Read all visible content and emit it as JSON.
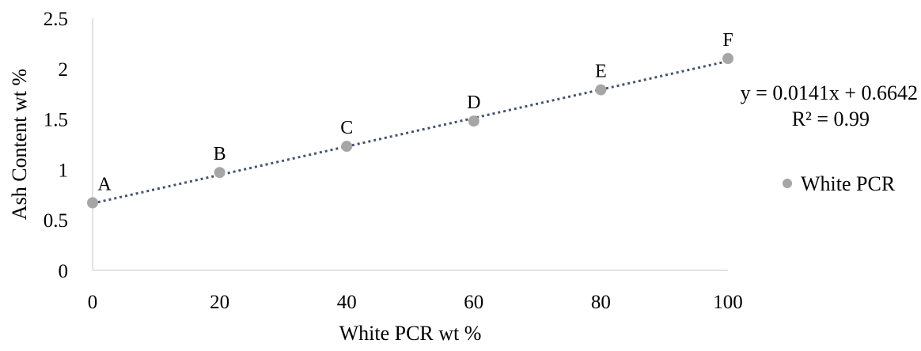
{
  "chart_data": {
    "type": "scatter",
    "xlabel": "White PCR wt %",
    "ylabel": "Ash Content wt %",
    "xlim": [
      0,
      100
    ],
    "ylim": [
      0,
      2.5
    ],
    "xticks": [
      "0",
      "20",
      "40",
      "60",
      "80",
      "100"
    ],
    "yticks": [
      "0",
      "0.5",
      "1",
      "1.5",
      "2",
      "2.5"
    ],
    "grid": false,
    "legend_position": "right",
    "series": [
      {
        "name": "White PCR",
        "color": "#a6a6a6",
        "points": [
          {
            "x": 0,
            "y": 0.67,
            "label": "A"
          },
          {
            "x": 20,
            "y": 0.97,
            "label": "B"
          },
          {
            "x": 40,
            "y": 1.23,
            "label": "C"
          },
          {
            "x": 60,
            "y": 1.48,
            "label": "D"
          },
          {
            "x": 80,
            "y": 1.79,
            "label": "E"
          },
          {
            "x": 100,
            "y": 2.1,
            "label": "F"
          }
        ]
      }
    ],
    "trendline": {
      "type": "linear",
      "slope": 0.0141,
      "intercept": 0.6642,
      "color": "#44546a",
      "equation": "y = 0.0141x + 0.6642",
      "r_squared": "R² = 0.99"
    }
  }
}
